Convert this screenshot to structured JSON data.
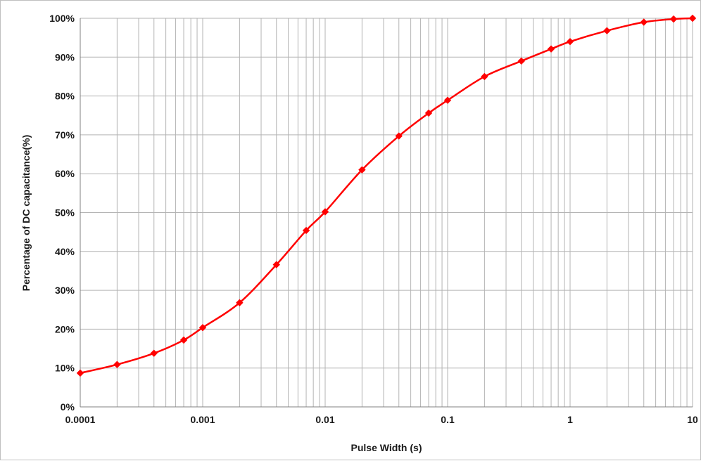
{
  "chart_data": {
    "type": "line",
    "title": "",
    "xlabel": "Pulse Width (s)",
    "ylabel": "Percentage of DC capacitance(%)",
    "x_scale": "log",
    "xlim": [
      0.0001,
      10
    ],
    "ylim": [
      0,
      100
    ],
    "x_ticks": [
      0.0001,
      0.001,
      0.01,
      0.1,
      1,
      10
    ],
    "x_tick_labels": [
      "0.0001",
      "0.001",
      "0.01",
      "0.1",
      "1",
      "10"
    ],
    "y_ticks": [
      0,
      10,
      20,
      30,
      40,
      50,
      60,
      70,
      80,
      90,
      100
    ],
    "y_tick_labels": [
      "0%",
      "10%",
      "20%",
      "30%",
      "40%",
      "50%",
      "60%",
      "70%",
      "80%",
      "90%",
      "100%"
    ],
    "grid": true,
    "legend": "none",
    "series": [
      {
        "color": "#ff0000",
        "marker": "diamond",
        "x": [
          0.0001,
          0.0002,
          0.0004,
          0.0007,
          0.001,
          0.002,
          0.004,
          0.007,
          0.01,
          0.02,
          0.04,
          0.07,
          0.1,
          0.2,
          0.4,
          0.7,
          1,
          2,
          4,
          7,
          10
        ],
        "y": [
          8.7,
          10.9,
          13.8,
          17.2,
          20.4,
          26.8,
          36.6,
          45.4,
          50.2,
          61.0,
          69.7,
          75.6,
          78.9,
          85.0,
          89.0,
          92.1,
          94.0,
          96.8,
          99.0,
          99.8,
          100.0
        ]
      }
    ]
  }
}
